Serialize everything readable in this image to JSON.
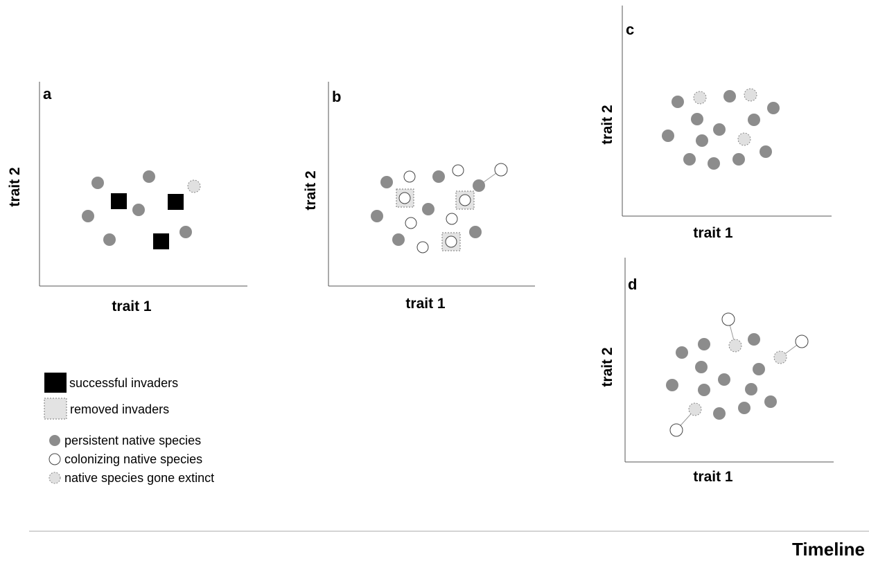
{
  "colors": {
    "persistent": "#8c8c8c",
    "colonizing": "#ffffff",
    "extinct": "#e0e0e0",
    "successful": "#000000",
    "removed": "#e3e3e3",
    "axis": "#555555",
    "timeline": "#aaaaaa"
  },
  "panels": [
    {
      "id": "a",
      "label": "a",
      "xlabel": "trait 1",
      "ylabel": "trait 2"
    },
    {
      "id": "b",
      "label": "b",
      "xlabel": "trait 1",
      "ylabel": "trait 2"
    },
    {
      "id": "c",
      "label": "c",
      "xlabel": "trait 1",
      "ylabel": "trait 2"
    },
    {
      "id": "d",
      "label": "d",
      "xlabel": "trait 1",
      "ylabel": "trait 2"
    }
  ],
  "legend": {
    "successful_invaders": "successful invaders",
    "removed_invaders": "removed invaders",
    "persistent_native": "persistent native species",
    "colonizing_native": "colonizing native species",
    "extinct_native": "native species gone extinct"
  },
  "timeline": {
    "label": "Timeline"
  }
}
